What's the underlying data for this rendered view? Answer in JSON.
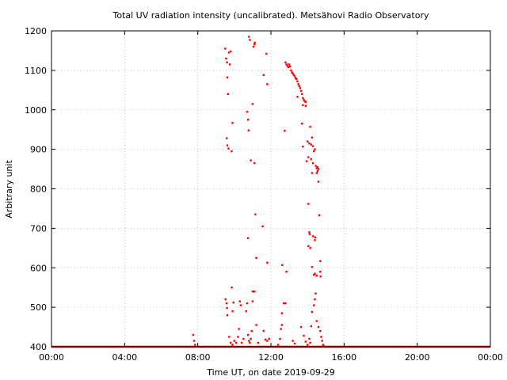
{
  "chart_data": {
    "type": "scatter",
    "title": "Total UV radiation intensity (uncalibrated). Metsähovi Radio Observatory",
    "xlabel": "Time UT, on date 2019-09-29",
    "ylabel": "Arbitrary unit",
    "xlim": [
      0,
      24
    ],
    "ylim": [
      400,
      1200
    ],
    "x_ticks": [
      {
        "value": 0,
        "label": "00:00"
      },
      {
        "value": 4,
        "label": "04:00"
      },
      {
        "value": 8,
        "label": "08:00"
      },
      {
        "value": 12,
        "label": "12:00"
      },
      {
        "value": 16,
        "label": "16:00"
      },
      {
        "value": 20,
        "label": "20:00"
      },
      {
        "value": 24,
        "label": "00:00"
      }
    ],
    "y_ticks": [
      {
        "value": 400,
        "label": "400"
      },
      {
        "value": 500,
        "label": "500"
      },
      {
        "value": 600,
        "label": "600"
      },
      {
        "value": 700,
        "label": "700"
      },
      {
        "value": 800,
        "label": "800"
      },
      {
        "value": 900,
        "label": "900"
      },
      {
        "value": 1000,
        "label": "1000"
      },
      {
        "value": 1100,
        "label": "1100"
      },
      {
        "value": 1200,
        "label": "1200"
      }
    ],
    "grid": true,
    "marker_color": "#ff0000",
    "baseline_value": 400,
    "points": [
      {
        "x": 7.75,
        "y": 430
      },
      {
        "x": 7.8,
        "y": 415
      },
      {
        "x": 7.85,
        "y": 405
      },
      {
        "x": 9.5,
        "y": 1155
      },
      {
        "x": 9.55,
        "y": 1130
      },
      {
        "x": 9.6,
        "y": 1120
      },
      {
        "x": 9.62,
        "y": 1082
      },
      {
        "x": 9.7,
        "y": 1145
      },
      {
        "x": 9.8,
        "y": 1148
      },
      {
        "x": 9.75,
        "y": 1115
      },
      {
        "x": 9.65,
        "y": 1040
      },
      {
        "x": 9.9,
        "y": 967
      },
      {
        "x": 9.58,
        "y": 928
      },
      {
        "x": 9.62,
        "y": 910
      },
      {
        "x": 9.68,
        "y": 902
      },
      {
        "x": 9.85,
        "y": 895
      },
      {
        "x": 9.52,
        "y": 520
      },
      {
        "x": 9.57,
        "y": 510
      },
      {
        "x": 9.6,
        "y": 498
      },
      {
        "x": 9.62,
        "y": 480
      },
      {
        "x": 9.86,
        "y": 550
      },
      {
        "x": 9.95,
        "y": 512
      },
      {
        "x": 9.9,
        "y": 490
      },
      {
        "x": 9.72,
        "y": 425
      },
      {
        "x": 9.8,
        "y": 410
      },
      {
        "x": 9.9,
        "y": 405
      },
      {
        "x": 10.0,
        "y": 415
      },
      {
        "x": 10.1,
        "y": 410
      },
      {
        "x": 10.2,
        "y": 425
      },
      {
        "x": 10.25,
        "y": 445
      },
      {
        "x": 10.3,
        "y": 515
      },
      {
        "x": 10.35,
        "y": 505
      },
      {
        "x": 10.4,
        "y": 410
      },
      {
        "x": 10.5,
        "y": 420
      },
      {
        "x": 10.65,
        "y": 490
      },
      {
        "x": 10.7,
        "y": 510
      },
      {
        "x": 10.75,
        "y": 430
      },
      {
        "x": 10.8,
        "y": 415
      },
      {
        "x": 10.85,
        "y": 410
      },
      {
        "x": 10.9,
        "y": 420
      },
      {
        "x": 10.95,
        "y": 440
      },
      {
        "x": 10.8,
        "y": 1185
      },
      {
        "x": 10.85,
        "y": 1177
      },
      {
        "x": 11.05,
        "y": 1160
      },
      {
        "x": 11.1,
        "y": 1166
      },
      {
        "x": 11.12,
        "y": 1170
      },
      {
        "x": 11.0,
        "y": 1015
      },
      {
        "x": 10.7,
        "y": 995
      },
      {
        "x": 10.75,
        "y": 975
      },
      {
        "x": 10.78,
        "y": 948
      },
      {
        "x": 10.9,
        "y": 872
      },
      {
        "x": 11.1,
        "y": 865
      },
      {
        "x": 11.15,
        "y": 735
      },
      {
        "x": 10.75,
        "y": 675
      },
      {
        "x": 11.2,
        "y": 625
      },
      {
        "x": 11.0,
        "y": 540
      },
      {
        "x": 11.1,
        "y": 540
      },
      {
        "x": 11.0,
        "y": 515
      },
      {
        "x": 11.2,
        "y": 455
      },
      {
        "x": 11.3,
        "y": 410
      },
      {
        "x": 11.55,
        "y": 705
      },
      {
        "x": 11.8,
        "y": 613
      },
      {
        "x": 11.6,
        "y": 1088
      },
      {
        "x": 11.75,
        "y": 1142
      },
      {
        "x": 11.8,
        "y": 1065
      },
      {
        "x": 11.6,
        "y": 440
      },
      {
        "x": 11.7,
        "y": 418
      },
      {
        "x": 11.8,
        "y": 415
      },
      {
        "x": 11.9,
        "y": 420
      },
      {
        "x": 12.4,
        "y": 405
      },
      {
        "x": 12.5,
        "y": 420
      },
      {
        "x": 12.55,
        "y": 445
      },
      {
        "x": 12.6,
        "y": 455
      },
      {
        "x": 12.6,
        "y": 485
      },
      {
        "x": 12.62,
        "y": 607
      },
      {
        "x": 12.7,
        "y": 510
      },
      {
        "x": 12.8,
        "y": 510
      },
      {
        "x": 12.75,
        "y": 947
      },
      {
        "x": 12.85,
        "y": 590
      },
      {
        "x": 12.8,
        "y": 1120
      },
      {
        "x": 12.85,
        "y": 1115
      },
      {
        "x": 12.9,
        "y": 1112
      },
      {
        "x": 12.95,
        "y": 1108
      },
      {
        "x": 13.0,
        "y": 1115
      },
      {
        "x": 13.05,
        "y": 1110
      },
      {
        "x": 13.1,
        "y": 1100
      },
      {
        "x": 13.15,
        "y": 1095
      },
      {
        "x": 13.2,
        "y": 1092
      },
      {
        "x": 13.25,
        "y": 1088
      },
      {
        "x": 13.3,
        "y": 1085
      },
      {
        "x": 13.35,
        "y": 1080
      },
      {
        "x": 13.4,
        "y": 1078
      },
      {
        "x": 13.45,
        "y": 1072
      },
      {
        "x": 13.5,
        "y": 1065
      },
      {
        "x": 13.55,
        "y": 1060
      },
      {
        "x": 13.6,
        "y": 1055
      },
      {
        "x": 13.65,
        "y": 1048
      },
      {
        "x": 13.7,
        "y": 1040
      },
      {
        "x": 13.75,
        "y": 1030
      },
      {
        "x": 13.8,
        "y": 1025
      },
      {
        "x": 13.85,
        "y": 1022
      },
      {
        "x": 13.9,
        "y": 1020
      },
      {
        "x": 13.75,
        "y": 1012
      },
      {
        "x": 13.9,
        "y": 1010
      },
      {
        "x": 13.45,
        "y": 1033
      },
      {
        "x": 13.7,
        "y": 965
      },
      {
        "x": 13.75,
        "y": 907
      },
      {
        "x": 13.95,
        "y": 870
      },
      {
        "x": 14.05,
        "y": 880
      },
      {
        "x": 14.0,
        "y": 920
      },
      {
        "x": 14.1,
        "y": 915
      },
      {
        "x": 14.2,
        "y": 912
      },
      {
        "x": 14.15,
        "y": 957
      },
      {
        "x": 14.25,
        "y": 930
      },
      {
        "x": 14.3,
        "y": 908
      },
      {
        "x": 14.35,
        "y": 895
      },
      {
        "x": 14.4,
        "y": 900
      },
      {
        "x": 14.2,
        "y": 875
      },
      {
        "x": 14.3,
        "y": 865
      },
      {
        "x": 14.45,
        "y": 858
      },
      {
        "x": 14.5,
        "y": 852
      },
      {
        "x": 14.55,
        "y": 845
      },
      {
        "x": 14.6,
        "y": 850
      },
      {
        "x": 14.55,
        "y": 855
      },
      {
        "x": 14.5,
        "y": 840
      },
      {
        "x": 14.25,
        "y": 840
      },
      {
        "x": 14.6,
        "y": 818
      },
      {
        "x": 14.05,
        "y": 762
      },
      {
        "x": 14.1,
        "y": 690
      },
      {
        "x": 14.12,
        "y": 685
      },
      {
        "x": 14.3,
        "y": 680
      },
      {
        "x": 14.4,
        "y": 670
      },
      {
        "x": 14.42,
        "y": 677
      },
      {
        "x": 14.05,
        "y": 655
      },
      {
        "x": 14.15,
        "y": 650
      },
      {
        "x": 14.65,
        "y": 733
      },
      {
        "x": 14.7,
        "y": 617
      },
      {
        "x": 14.25,
        "y": 602
      },
      {
        "x": 14.35,
        "y": 582
      },
      {
        "x": 14.4,
        "y": 585
      },
      {
        "x": 14.5,
        "y": 580
      },
      {
        "x": 14.7,
        "y": 590
      },
      {
        "x": 14.72,
        "y": 578
      },
      {
        "x": 14.45,
        "y": 535
      },
      {
        "x": 14.4,
        "y": 520
      },
      {
        "x": 14.35,
        "y": 505
      },
      {
        "x": 14.25,
        "y": 488
      },
      {
        "x": 14.5,
        "y": 465
      },
      {
        "x": 14.6,
        "y": 450
      },
      {
        "x": 14.7,
        "y": 440
      },
      {
        "x": 14.75,
        "y": 425
      },
      {
        "x": 14.8,
        "y": 415
      },
      {
        "x": 14.85,
        "y": 405
      },
      {
        "x": 14.9,
        "y": 402
      },
      {
        "x": 13.65,
        "y": 450
      },
      {
        "x": 13.8,
        "y": 428
      },
      {
        "x": 13.9,
        "y": 413
      },
      {
        "x": 14.0,
        "y": 405
      },
      {
        "x": 14.1,
        "y": 420
      },
      {
        "x": 14.15,
        "y": 410
      },
      {
        "x": 13.2,
        "y": 415
      },
      {
        "x": 13.3,
        "y": 408
      },
      {
        "x": 14.2,
        "y": 452
      }
    ]
  }
}
